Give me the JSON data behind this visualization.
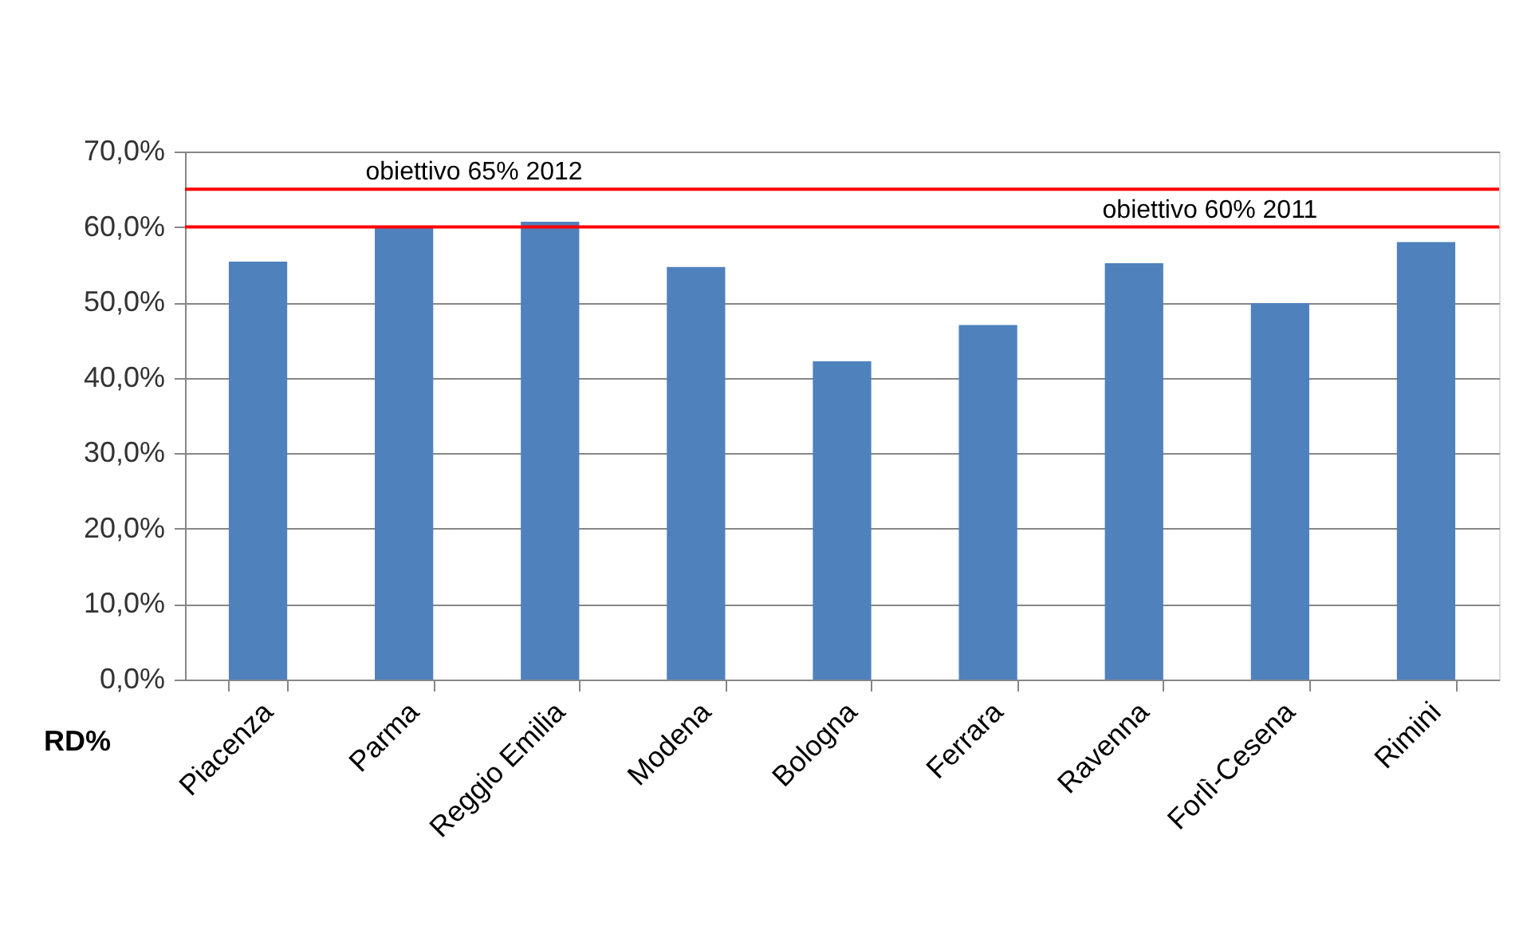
{
  "chart_data": {
    "type": "bar",
    "categories": [
      "Piacenza",
      "Parma",
      "Reggio Emilia",
      "Modena",
      "Bologna",
      "Ferrara",
      "Ravenna",
      "Forlì-Cesena",
      "Rimini"
    ],
    "values": [
      55.4,
      60.0,
      60.7,
      54.7,
      42.2,
      47.0,
      55.2,
      49.9,
      58.0
    ],
    "color": "#4f81bd",
    "xlabel": "RD%",
    "ylim": [
      0,
      70
    ],
    "yticks": [
      {
        "value": 0,
        "label": "0,0%"
      },
      {
        "value": 10,
        "label": "10,0%"
      },
      {
        "value": 20,
        "label": "20,0%"
      },
      {
        "value": 30,
        "label": "30,0%"
      },
      {
        "value": 40,
        "label": "40,0%"
      },
      {
        "value": 50,
        "label": "50,0%"
      },
      {
        "value": 60,
        "label": "60,0%"
      },
      {
        "value": 70,
        "label": "70,0%"
      }
    ],
    "grid": "y",
    "ref_lines": [
      {
        "axis": "y",
        "value": 65,
        "label": "obiettivo 65% 2012",
        "color": "#ff0000"
      },
      {
        "axis": "y",
        "value": 60,
        "label": "obiettivo 60% 2011",
        "color": "#ff0000"
      }
    ]
  }
}
